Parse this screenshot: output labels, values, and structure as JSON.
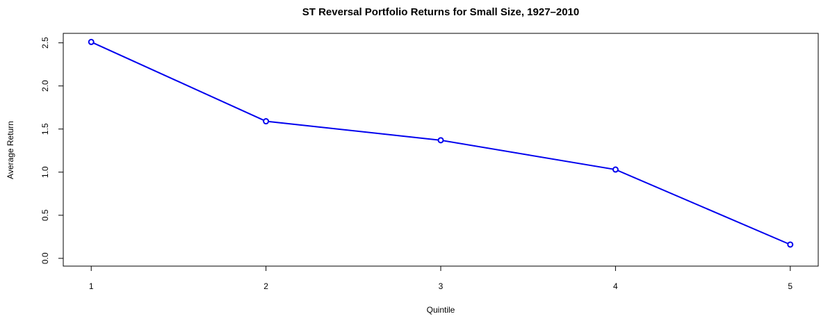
{
  "chart_data": {
    "type": "line",
    "title": "ST Reversal Portfolio Returns for Small Size, 1927–2010",
    "x_label": "Quintile",
    "y_label": "Average Return",
    "x": [
      1,
      2,
      3,
      4,
      5
    ],
    "series": [
      {
        "color": "#0000ee",
        "values": [
          2.51,
          1.59,
          1.37,
          1.03,
          0.16
        ]
      }
    ],
    "xlim": [
      0.84,
      5.16
    ],
    "xticks": [
      1,
      2,
      3,
      4,
      5
    ],
    "ylim": [
      -0.09,
      2.61
    ],
    "yticks": [
      {
        "value": 0,
        "label": "0.0"
      },
      {
        "value": 0.5,
        "label": "0.5"
      },
      {
        "value": 1,
        "label": "1.0"
      },
      {
        "value": 1.5,
        "label": "1.5"
      },
      {
        "value": 2,
        "label": "2.0"
      },
      {
        "value": 2.5,
        "label": "2.5"
      }
    ]
  }
}
